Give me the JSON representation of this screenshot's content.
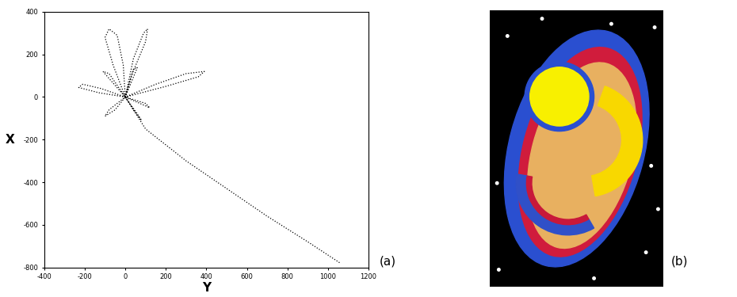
{
  "chart_data": {
    "type": "line",
    "x_label": "Y",
    "y_label": "X",
    "line_style": "dotted",
    "color": "#000000",
    "annotations": [
      "(a)"
    ],
    "x": [
      0,
      -60,
      -100,
      -80,
      -40,
      -10,
      0,
      40,
      90,
      110,
      100,
      30,
      0,
      150,
      300,
      390,
      360,
      200,
      0,
      -120,
      -210,
      -230,
      -130,
      0,
      -80,
      -100,
      -50,
      0,
      60,
      80,
      40,
      0,
      -110,
      -80,
      0,
      120,
      100,
      0,
      60,
      40,
      0,
      100,
      300,
      500,
      700,
      900,
      1060
    ],
    "values": [
      0,
      150,
      280,
      320,
      290,
      150,
      0,
      180,
      300,
      320,
      260,
      100,
      0,
      60,
      110,
      120,
      95,
      50,
      0,
      40,
      60,
      45,
      20,
      0,
      -60,
      -90,
      -60,
      0,
      -80,
      -110,
      -60,
      0,
      120,
      110,
      0,
      -50,
      -30,
      0,
      140,
      130,
      0,
      -150,
      -300,
      -430,
      -560,
      -680,
      -780
    ],
    "xlim": [
      -400,
      1200
    ],
    "xticks": [
      -400,
      -200,
      0,
      200,
      400,
      600,
      800,
      1000,
      1200
    ],
    "ylim": [
      -800,
      400
    ],
    "yticks": [
      -800,
      -600,
      -400,
      -200,
      0,
      200,
      400
    ]
  },
  "image": {
    "label": "(b)"
  }
}
